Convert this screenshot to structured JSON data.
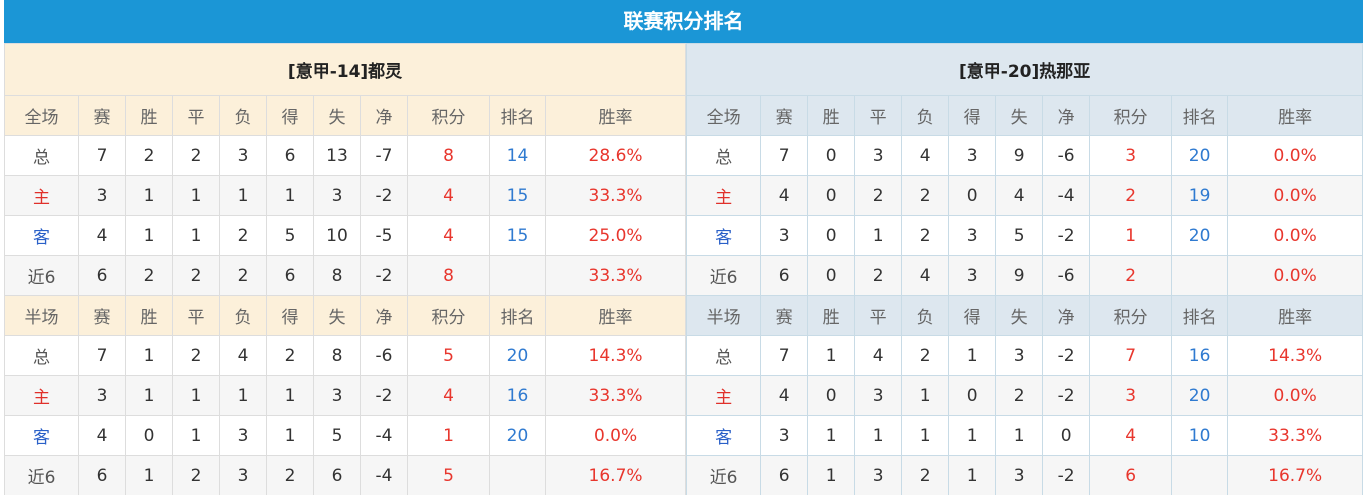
{
  "title": "联赛积分排名",
  "headers_full": [
    "全场",
    "赛",
    "胜",
    "平",
    "负",
    "得",
    "失",
    "净",
    "积分",
    "排名",
    "胜率"
  ],
  "headers_half": [
    "半场",
    "赛",
    "胜",
    "平",
    "负",
    "得",
    "失",
    "净",
    "积分",
    "排名",
    "胜率"
  ],
  "colors": {
    "title_bg": "#1b96d6",
    "home": "#e0302a",
    "away": "#2a60c8",
    "points": "#e8362d",
    "rank": "#2f7ad0"
  },
  "teams": [
    {
      "name": "[意甲-14]都灵",
      "full": [
        [
          "总",
          "7",
          "2",
          "2",
          "3",
          "6",
          "13",
          "-7",
          "8",
          "14",
          "28.6%"
        ],
        [
          "主",
          "3",
          "1",
          "1",
          "1",
          "1",
          "3",
          "-2",
          "4",
          "15",
          "33.3%"
        ],
        [
          "客",
          "4",
          "1",
          "1",
          "2",
          "5",
          "10",
          "-5",
          "4",
          "15",
          "25.0%"
        ],
        [
          "近6",
          "6",
          "2",
          "2",
          "2",
          "6",
          "8",
          "-2",
          "8",
          "",
          "33.3%"
        ]
      ],
      "half": [
        [
          "总",
          "7",
          "1",
          "2",
          "4",
          "2",
          "8",
          "-6",
          "5",
          "20",
          "14.3%"
        ],
        [
          "主",
          "3",
          "1",
          "1",
          "1",
          "1",
          "3",
          "-2",
          "4",
          "16",
          "33.3%"
        ],
        [
          "客",
          "4",
          "0",
          "1",
          "3",
          "1",
          "5",
          "-4",
          "1",
          "20",
          "0.0%"
        ],
        [
          "近6",
          "6",
          "1",
          "2",
          "3",
          "2",
          "6",
          "-4",
          "5",
          "",
          "16.7%"
        ]
      ]
    },
    {
      "name": "[意甲-20]热那亚",
      "full": [
        [
          "总",
          "7",
          "0",
          "3",
          "4",
          "3",
          "9",
          "-6",
          "3",
          "20",
          "0.0%"
        ],
        [
          "主",
          "4",
          "0",
          "2",
          "2",
          "0",
          "4",
          "-4",
          "2",
          "19",
          "0.0%"
        ],
        [
          "客",
          "3",
          "0",
          "1",
          "2",
          "3",
          "5",
          "-2",
          "1",
          "20",
          "0.0%"
        ],
        [
          "近6",
          "6",
          "0",
          "2",
          "4",
          "3",
          "9",
          "-6",
          "2",
          "",
          "0.0%"
        ]
      ],
      "half": [
        [
          "总",
          "7",
          "1",
          "4",
          "2",
          "1",
          "3",
          "-2",
          "7",
          "16",
          "14.3%"
        ],
        [
          "主",
          "4",
          "0",
          "3",
          "1",
          "0",
          "2",
          "-2",
          "3",
          "20",
          "0.0%"
        ],
        [
          "客",
          "3",
          "1",
          "1",
          "1",
          "1",
          "1",
          "0",
          "4",
          "10",
          "33.3%"
        ],
        [
          "近6",
          "6",
          "1",
          "3",
          "2",
          "1",
          "3",
          "-2",
          "6",
          "",
          "16.7%"
        ]
      ]
    }
  ]
}
